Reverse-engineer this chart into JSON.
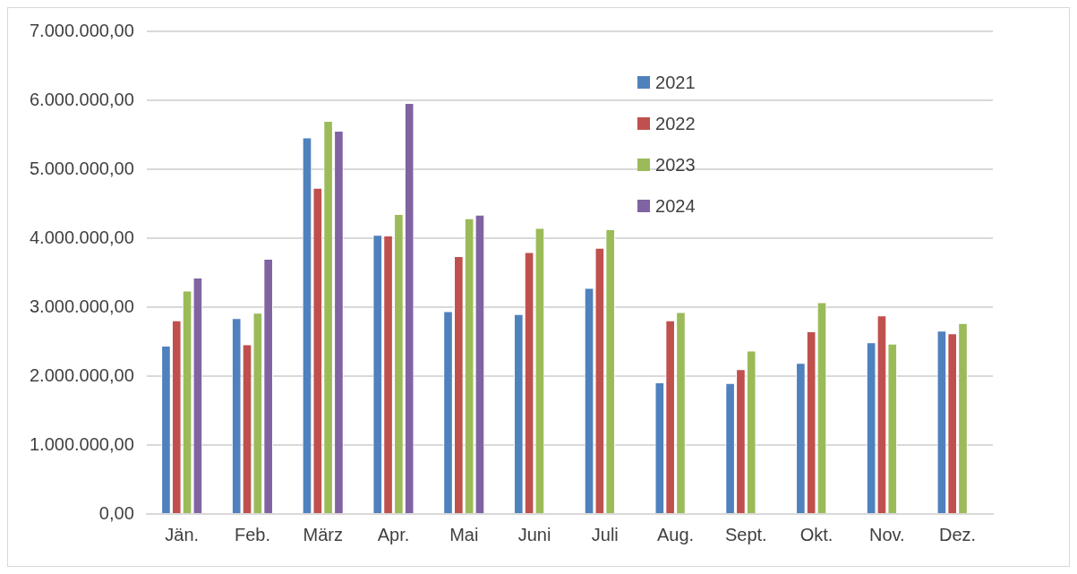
{
  "chart_data": {
    "type": "bar",
    "categories": [
      "Jän.",
      "Feb.",
      "März",
      "Apr.",
      "Mai",
      "Juni",
      "Juli",
      "Aug.",
      "Sept.",
      "Okt.",
      "Nov.",
      "Dez."
    ],
    "series": [
      {
        "name": "2021",
        "color": "#4f81bd",
        "values": [
          2440000,
          2840000,
          5460000,
          4050000,
          2940000,
          2900000,
          3280000,
          1910000,
          1900000,
          2190000,
          2490000,
          2660000
        ]
      },
      {
        "name": "2022",
        "color": "#c0504d",
        "values": [
          2810000,
          2460000,
          4730000,
          4040000,
          3740000,
          3800000,
          3860000,
          2810000,
          2100000,
          2650000,
          2880000,
          2620000
        ]
      },
      {
        "name": "2023",
        "color": "#9bbb59",
        "values": [
          3240000,
          2920000,
          5700000,
          4350000,
          4290000,
          4150000,
          4130000,
          2930000,
          2370000,
          3070000,
          2470000,
          2770000
        ]
      },
      {
        "name": "2024",
        "color": "#8064a2",
        "values": [
          3430000,
          3700000,
          5560000,
          5960000,
          4340000,
          null,
          null,
          null,
          null,
          null,
          null,
          null
        ]
      }
    ],
    "ylim": [
      0,
      7000000
    ],
    "yticks": [
      {
        "value": 0,
        "label": "0,00"
      },
      {
        "value": 1000000,
        "label": "1.000.000,00"
      },
      {
        "value": 2000000,
        "label": "2.000.000,00"
      },
      {
        "value": 3000000,
        "label": "3.000.000,00"
      },
      {
        "value": 4000000,
        "label": "4.000.000,00"
      },
      {
        "value": 5000000,
        "label": "5.000.000,00"
      },
      {
        "value": 6000000,
        "label": "6.000.000,00"
      },
      {
        "value": 7000000,
        "label": "7.000.000,00"
      }
    ],
    "grid": "y",
    "legend": "top right"
  }
}
